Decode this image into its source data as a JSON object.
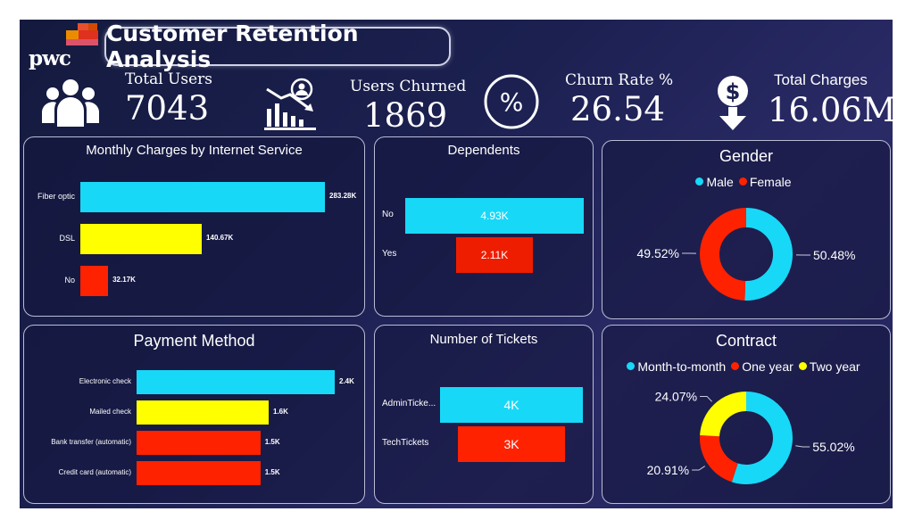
{
  "brand": {
    "logo_text": "pwc"
  },
  "header": {
    "title": "Customer Retention Analysis"
  },
  "kpis": [
    {
      "label": "Total Users",
      "value": "7043",
      "icon": "users-icon"
    },
    {
      "label": "Users Churned",
      "value": "1869",
      "icon": "declining-chart-user-icon"
    },
    {
      "label": "Churn Rate %",
      "value": "26.54",
      "icon": "percent-icon"
    },
    {
      "label": "Total Charges",
      "value": "16.06M",
      "icon": "dollar-download-icon"
    }
  ],
  "colors": {
    "cyan": "#18d8f7",
    "yellow": "#ffff00",
    "red": "#ff2200",
    "orange_red": "#ee1d00"
  },
  "chart_data": [
    {
      "id": "monthly",
      "type": "bar",
      "orientation": "horizontal",
      "title": "Monthly Charges by Internet Service",
      "categories": [
        "Fiber optic",
        "DSL",
        "No"
      ],
      "values": [
        283.28,
        140.67,
        32.17
      ],
      "labels": [
        "283.28K",
        "140.67K",
        "32.17K"
      ],
      "colors": [
        "#18d8f7",
        "#ffff00",
        "#ff2200"
      ]
    },
    {
      "id": "dependents",
      "type": "bar",
      "orientation": "horizontal",
      "title": "Dependents",
      "categories": [
        "No",
        "Yes"
      ],
      "values": [
        4.93,
        2.11
      ],
      "labels": [
        "4.93K",
        "2.11K"
      ],
      "colors": [
        "#18d8f7",
        "#ee1d00"
      ]
    },
    {
      "id": "gender",
      "type": "pie",
      "title": "Gender",
      "categories": [
        "Male",
        "Female"
      ],
      "values": [
        50.48,
        49.52
      ],
      "labels": [
        "50.48%",
        "49.52%"
      ],
      "colors": [
        "#18d8f7",
        "#ff2200"
      ]
    },
    {
      "id": "payment",
      "type": "bar",
      "orientation": "horizontal",
      "title": "Payment Method",
      "categories": [
        "Electronic check",
        "Mailed check",
        "Bank transfer (automatic)",
        "Credit card (automatic)"
      ],
      "values": [
        2.4,
        1.6,
        1.5,
        1.5
      ],
      "labels": [
        "2.4K",
        "1.6K",
        "1.5K",
        "1.5K"
      ],
      "colors": [
        "#18d8f7",
        "#ffff00",
        "#ff2200",
        "#ff2200"
      ]
    },
    {
      "id": "tickets",
      "type": "bar",
      "orientation": "horizontal",
      "title": "Number of Tickets",
      "categories": [
        "AdminTicke...",
        "TechTickets"
      ],
      "values": [
        4,
        3
      ],
      "labels": [
        "4K",
        "3K"
      ],
      "colors": [
        "#18d8f7",
        "#ff2200"
      ]
    },
    {
      "id": "contract",
      "type": "pie",
      "title": "Contract",
      "categories": [
        "Month-to-month",
        "One year",
        "Two year"
      ],
      "values": [
        55.02,
        20.91,
        24.07
      ],
      "labels": [
        "55.02%",
        "20.91%",
        "24.07%"
      ],
      "colors": [
        "#18d8f7",
        "#ff2200",
        "#ffff00"
      ]
    }
  ]
}
